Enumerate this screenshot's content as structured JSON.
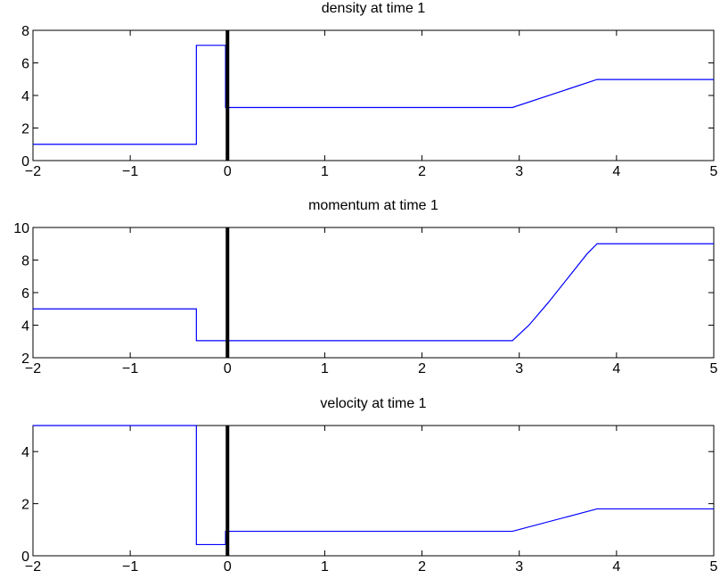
{
  "chart_data": [
    {
      "type": "line",
      "title": "density at time 1",
      "xlabel": "",
      "ylabel": "",
      "xlim": [
        -2,
        5
      ],
      "ylim": [
        0,
        8
      ],
      "x_ticks": [
        -2,
        -1,
        0,
        1,
        2,
        3,
        4,
        5
      ],
      "x_tick_labels": [
        "−2",
        "−1",
        "0",
        "1",
        "2",
        "3",
        "4",
        "5"
      ],
      "y_ticks": [
        0,
        2,
        4,
        6,
        8
      ],
      "y_tick_labels": [
        "0",
        "2",
        "4",
        "6",
        "8"
      ],
      "vertical_marker_x": 0,
      "line_color": "#0000ff",
      "marker_color": "#000000",
      "series": [
        {
          "x": [
            -2,
            -0.32,
            -0.32,
            -0.02,
            -0.02,
            2.93,
            3.8,
            5
          ],
          "y": [
            1.0,
            1.0,
            7.08,
            7.08,
            3.26,
            3.26,
            4.98,
            4.98
          ]
        }
      ]
    },
    {
      "type": "line",
      "title": "momentum at time 1",
      "xlabel": "",
      "ylabel": "",
      "xlim": [
        -2,
        5
      ],
      "ylim": [
        2,
        10
      ],
      "x_ticks": [
        -2,
        -1,
        0,
        1,
        2,
        3,
        4,
        5
      ],
      "x_tick_labels": [
        "−2",
        "−1",
        "0",
        "1",
        "2",
        "3",
        "4",
        "5"
      ],
      "y_ticks": [
        2,
        4,
        6,
        8,
        10
      ],
      "y_tick_labels": [
        "2",
        "4",
        "6",
        "8",
        "10"
      ],
      "vertical_marker_x": 0,
      "line_color": "#0000ff",
      "marker_color": "#000000",
      "series": [
        {
          "x": [
            -2,
            -0.32,
            -0.32,
            2.93,
            3.1,
            3.3,
            3.5,
            3.7,
            3.8,
            5
          ],
          "y": [
            5.0,
            5.0,
            3.05,
            3.05,
            4.0,
            5.4,
            6.9,
            8.4,
            9.0,
            9.0
          ]
        }
      ]
    },
    {
      "type": "line",
      "title": "velocity at time 1",
      "xlabel": "",
      "ylabel": "",
      "xlim": [
        -2,
        5
      ],
      "ylim": [
        0,
        5
      ],
      "x_ticks": [
        -2,
        -1,
        0,
        1,
        2,
        3,
        4,
        5
      ],
      "x_tick_labels": [
        "−2",
        "−1",
        "0",
        "1",
        "2",
        "3",
        "4",
        "5"
      ],
      "y_ticks": [
        0,
        2,
        4
      ],
      "y_tick_labels": [
        "0",
        "2",
        "4"
      ],
      "vertical_marker_x": 0,
      "line_color": "#0000ff",
      "marker_color": "#000000",
      "series": [
        {
          "x": [
            -2,
            -0.32,
            -0.32,
            -0.02,
            -0.02,
            2.93,
            3.8,
            5
          ],
          "y": [
            5.0,
            5.0,
            0.43,
            0.43,
            0.94,
            0.94,
            1.8,
            1.8
          ]
        }
      ]
    }
  ]
}
